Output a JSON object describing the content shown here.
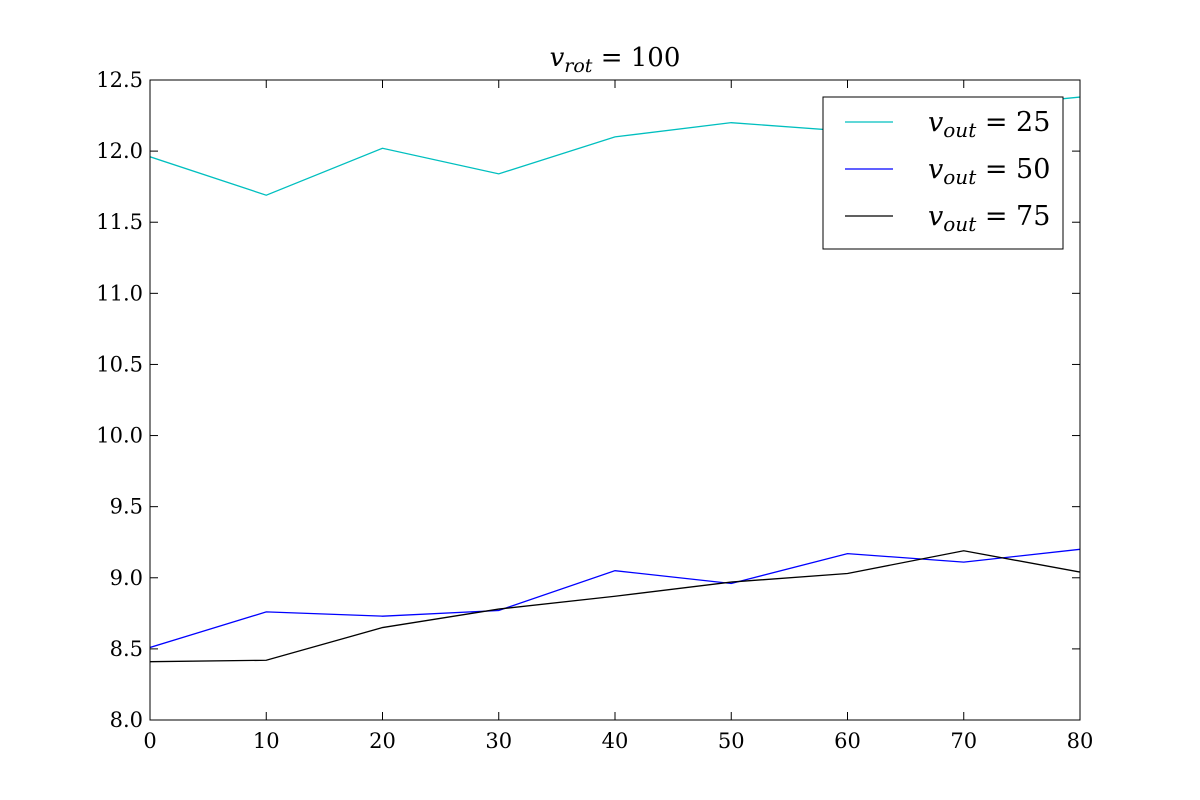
{
  "chart_data": {
    "type": "line",
    "title": {
      "var": "v",
      "sub": "rot",
      "rest": " = 100"
    },
    "xlabel": "",
    "ylabel": "",
    "xlim": [
      0,
      80
    ],
    "ylim": [
      8.0,
      12.5
    ],
    "xticks": [
      0,
      10,
      20,
      30,
      40,
      50,
      60,
      70,
      80
    ],
    "xtick_labels": [
      "0",
      "10",
      "20",
      "30",
      "40",
      "50",
      "60",
      "70",
      "80"
    ],
    "yticks": [
      8.0,
      8.5,
      9.0,
      9.5,
      10.0,
      10.5,
      11.0,
      11.5,
      12.0,
      12.5
    ],
    "ytick_labels": [
      "8.0",
      "8.5",
      "9.0",
      "9.5",
      "10.0",
      "10.5",
      "11.0",
      "11.5",
      "12.0",
      "12.5"
    ],
    "grid": false,
    "legend_position": "top-right",
    "x": [
      0,
      10,
      20,
      30,
      40,
      50,
      60,
      70,
      80
    ],
    "series": [
      {
        "name": "v_out = 25",
        "legend": {
          "var": "v",
          "sub": "out",
          "rest": " = 25"
        },
        "color": "#00bfbf",
        "values": [
          11.96,
          11.69,
          12.02,
          11.84,
          12.1,
          12.2,
          12.14,
          12.3,
          12.38
        ]
      },
      {
        "name": "v_out = 50",
        "legend": {
          "var": "v",
          "sub": "out",
          "rest": " = 50"
        },
        "color": "#0000ff",
        "values": [
          8.51,
          8.76,
          8.73,
          8.77,
          9.05,
          8.96,
          9.17,
          9.11,
          9.2
        ]
      },
      {
        "name": "v_out = 75",
        "legend": {
          "var": "v",
          "sub": "out",
          "rest": " = 75"
        },
        "color": "#000000",
        "values": [
          8.41,
          8.42,
          8.65,
          8.78,
          8.87,
          8.97,
          9.03,
          9.19,
          9.04
        ]
      }
    ]
  }
}
